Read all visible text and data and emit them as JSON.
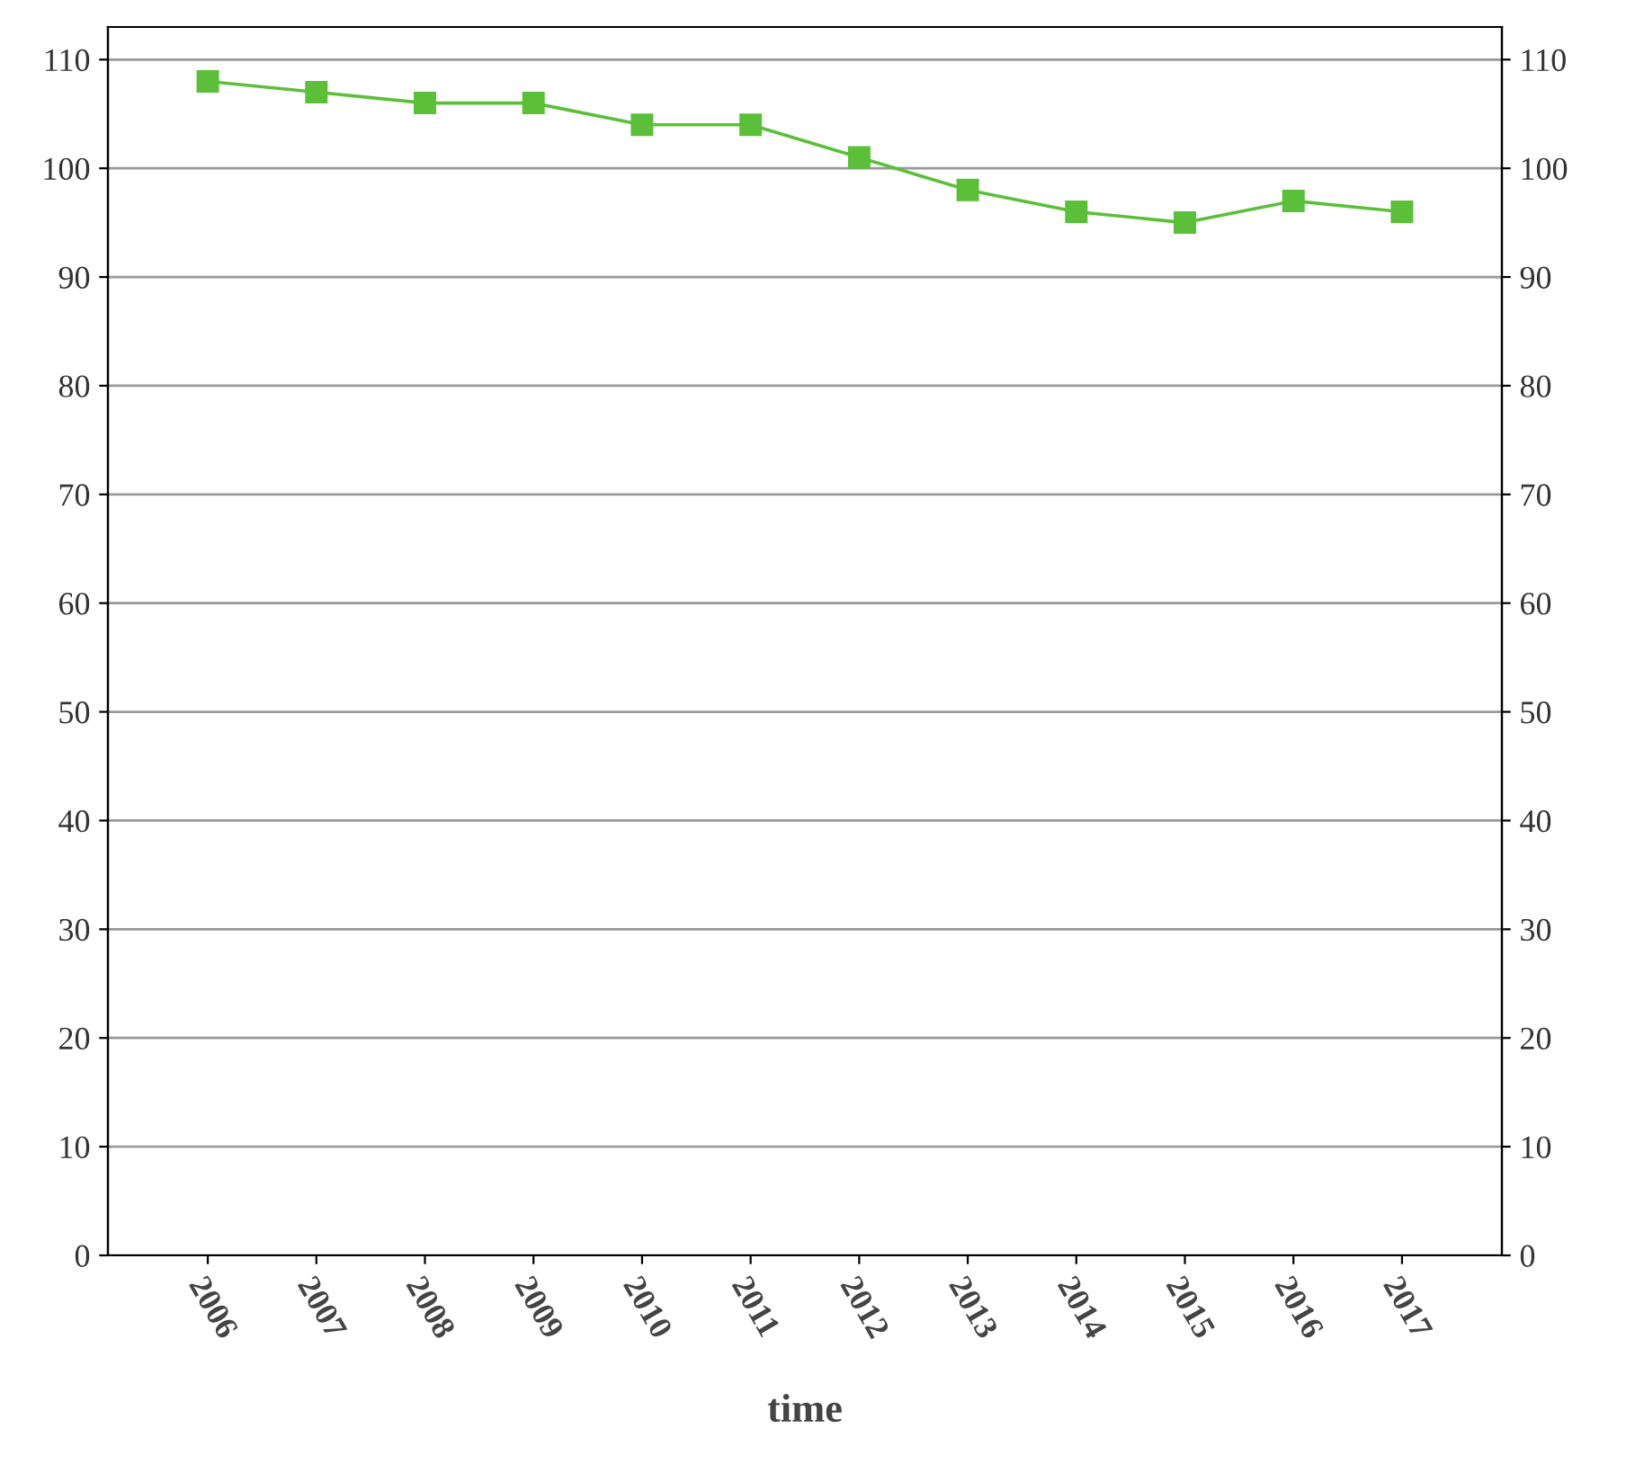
{
  "chart_data": {
    "type": "line",
    "xlabel": "time",
    "categories": [
      "2006",
      "2007",
      "2008",
      "2009",
      "2010",
      "2011",
      "2012",
      "2013",
      "2014",
      "2015",
      "2016",
      "2017"
    ],
    "series": [
      {
        "color": "#5cbf3a",
        "values": [
          108,
          107,
          106,
          106,
          104,
          104,
          101,
          98,
          96,
          95,
          97,
          96
        ]
      }
    ],
    "ylim": [
      0,
      113
    ],
    "yticks": [
      0,
      10,
      20,
      30,
      40,
      50,
      60,
      70,
      80,
      90,
      100,
      110
    ],
    "y2lim": [
      0,
      113
    ],
    "y2ticks": [
      0,
      10,
      20,
      30,
      40,
      50,
      60,
      70,
      80,
      90,
      100,
      110
    ],
    "grid": "y",
    "legend": false,
    "marker": "square",
    "line_style": "solid"
  }
}
